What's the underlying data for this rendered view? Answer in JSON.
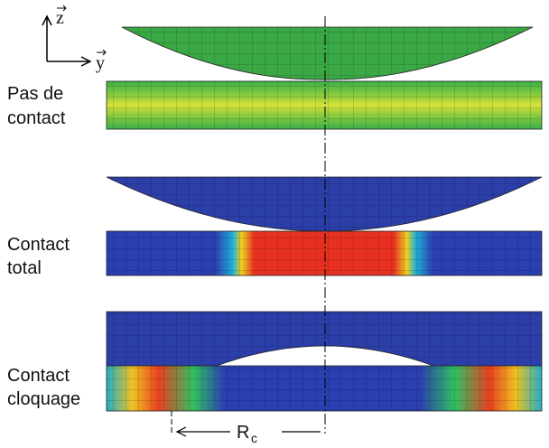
{
  "axes": {
    "z": "z",
    "y": "y"
  },
  "panels": [
    {
      "label_lines": [
        "Pas de",
        "contact"
      ]
    },
    {
      "label_lines": [
        "Contact",
        "total"
      ]
    },
    {
      "label_lines": [
        "Contact",
        "cloquage"
      ]
    }
  ],
  "dimension": {
    "symbol": "R",
    "subscript": "c"
  }
}
